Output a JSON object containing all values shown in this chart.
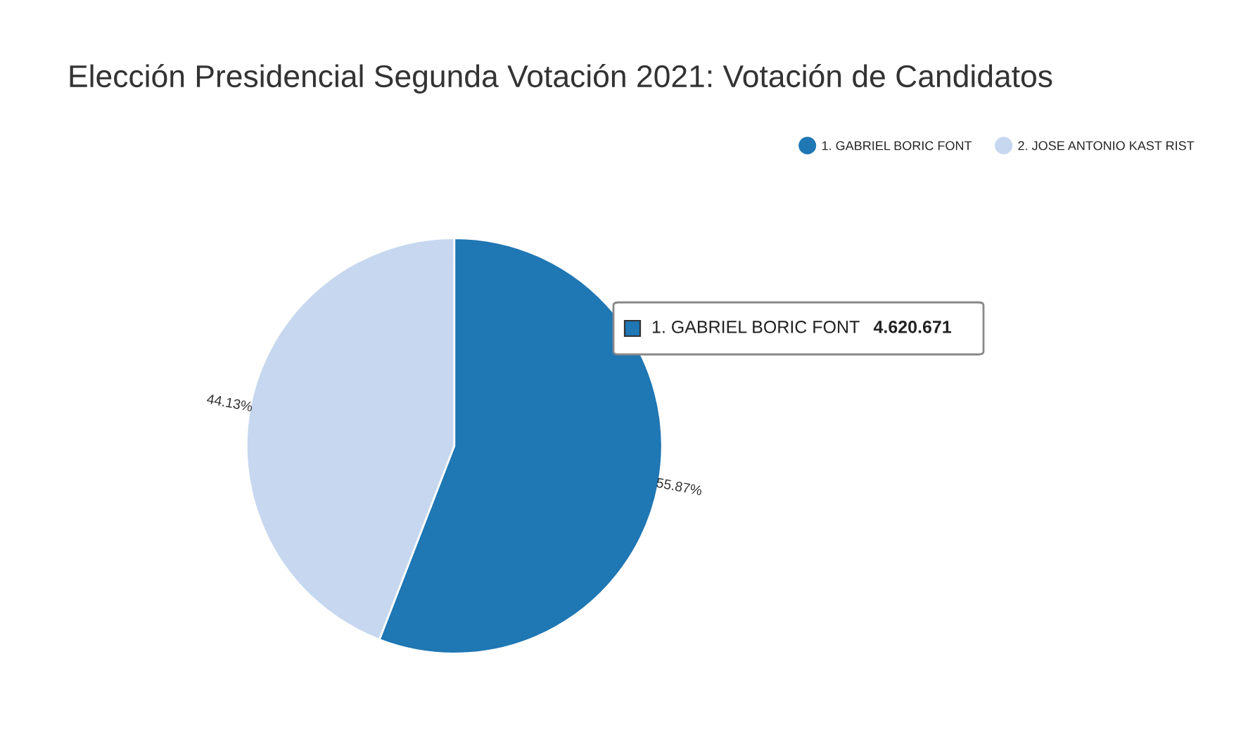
{
  "chart_data": {
    "type": "pie",
    "title": "Elección Presidencial Segunda Votación 2021: Votación de Candidatos",
    "categories": [
      "1. GABRIEL BORIC FONT",
      "2. JOSE ANTONIO KAST RIST"
    ],
    "values": [
      55.87,
      44.13
    ],
    "colors": [
      "#1f77b4",
      "#c6d7ef"
    ],
    "value_labels": [
      "55.87%",
      "44.13%"
    ],
    "legend": "top right",
    "annotations": [
      "1. GABRIEL BORIC FONT",
      "4.620.671"
    ]
  }
}
